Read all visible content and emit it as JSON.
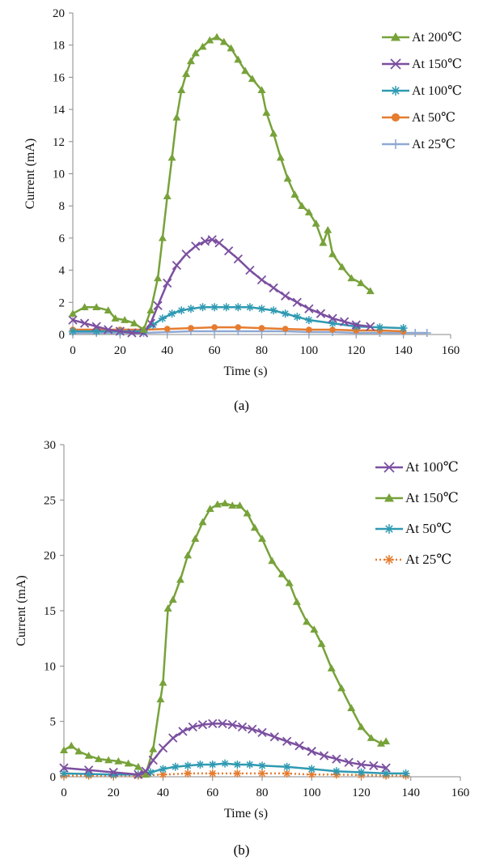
{
  "chart_data": [
    {
      "type": "line",
      "title": "",
      "caption": "(a)",
      "xlabel": "Time (s)",
      "ylabel": "Current (mA)",
      "xlim": [
        0,
        160
      ],
      "ylim": [
        0,
        20
      ],
      "xticks": [
        0,
        20,
        40,
        60,
        80,
        100,
        120,
        140,
        160
      ],
      "yticks": [
        0,
        2,
        4,
        6,
        8,
        10,
        12,
        14,
        16,
        18,
        20
      ],
      "grid": false,
      "legend_position": "top-right",
      "series": [
        {
          "name": "At 200℃",
          "color": "#77A23A",
          "marker": "triangle",
          "x": [
            0,
            5,
            10,
            15,
            18,
            22,
            26,
            30,
            33,
            36,
            38,
            40,
            42,
            44,
            46,
            48,
            50,
            52,
            55,
            58,
            61,
            64,
            67,
            70,
            73,
            76,
            80,
            82,
            85,
            88,
            91,
            94,
            97,
            100,
            103,
            106,
            108,
            110,
            114,
            118,
            122,
            126
          ],
          "y": [
            1.3,
            1.7,
            1.7,
            1.5,
            1.0,
            0.9,
            0.7,
            0.3,
            1.5,
            3.5,
            6.0,
            8.6,
            11.0,
            13.5,
            15.2,
            16.2,
            17.0,
            17.5,
            17.9,
            18.3,
            18.5,
            18.2,
            17.8,
            17.1,
            16.4,
            15.9,
            15.2,
            13.8,
            12.5,
            11.0,
            9.7,
            8.7,
            8.0,
            7.6,
            6.9,
            5.7,
            6.5,
            5.0,
            4.2,
            3.5,
            3.2,
            2.7
          ]
        },
        {
          "name": "At 150℃",
          "color": "#7B4FA0",
          "marker": "x",
          "x": [
            0,
            5,
            10,
            15,
            20,
            25,
            30,
            33,
            36,
            40,
            44,
            48,
            52,
            56,
            59,
            62,
            66,
            70,
            75,
            80,
            85,
            90,
            95,
            100,
            105,
            110,
            115,
            120,
            126
          ],
          "y": [
            0.9,
            0.7,
            0.5,
            0.3,
            0.2,
            0.1,
            0.1,
            0.7,
            1.8,
            3.2,
            4.3,
            5.0,
            5.5,
            5.8,
            5.9,
            5.7,
            5.2,
            4.7,
            4.0,
            3.4,
            2.9,
            2.4,
            2.0,
            1.6,
            1.3,
            1.0,
            0.8,
            0.6,
            0.5
          ]
        },
        {
          "name": "At 100℃",
          "color": "#2F9AB2",
          "marker": "asterisk",
          "x": [
            0,
            10,
            20,
            30,
            34,
            38,
            42,
            46,
            50,
            55,
            60,
            65,
            70,
            75,
            80,
            85,
            90,
            95,
            100,
            110,
            120,
            130,
            140
          ],
          "y": [
            0.2,
            0.2,
            0.2,
            0.2,
            0.6,
            1.0,
            1.3,
            1.5,
            1.6,
            1.7,
            1.7,
            1.7,
            1.7,
            1.7,
            1.6,
            1.5,
            1.3,
            1.1,
            0.9,
            0.7,
            0.5,
            0.45,
            0.4
          ]
        },
        {
          "name": "At 50℃",
          "color": "#E57C2F",
          "marker": "circle",
          "x": [
            0,
            10,
            20,
            30,
            40,
            50,
            60,
            70,
            80,
            90,
            100,
            110,
            120,
            130,
            140
          ],
          "y": [
            0.3,
            0.3,
            0.3,
            0.3,
            0.35,
            0.4,
            0.45,
            0.45,
            0.4,
            0.35,
            0.3,
            0.3,
            0.25,
            0.25,
            0.2
          ]
        },
        {
          "name": "At 25℃",
          "color": "#8FA9D3",
          "marker": "plus",
          "x": [
            0,
            10,
            20,
            30,
            40,
            50,
            60,
            70,
            80,
            90,
            100,
            110,
            120,
            130,
            140,
            145,
            150
          ],
          "y": [
            0.1,
            0.1,
            0.1,
            0.1,
            0.15,
            0.2,
            0.2,
            0.2,
            0.2,
            0.2,
            0.15,
            0.15,
            0.1,
            0.1,
            0.1,
            0.1,
            0.1
          ]
        }
      ]
    },
    {
      "type": "line",
      "title": "",
      "caption": "(b)",
      "xlabel": "Time (s)",
      "ylabel": "Current (mA)",
      "xlim": [
        0,
        160
      ],
      "ylim": [
        0,
        30
      ],
      "xticks": [
        0,
        20,
        40,
        60,
        80,
        100,
        120,
        140,
        160
      ],
      "yticks": [
        0,
        5,
        10,
        15,
        20,
        25,
        30
      ],
      "grid": false,
      "legend_position": "top-right",
      "series": [
        {
          "name": "At 100℃",
          "color": "#7B4FA0",
          "marker": "x",
          "x": [
            0,
            10,
            20,
            30,
            33,
            36,
            40,
            44,
            48,
            52,
            56,
            60,
            64,
            68,
            72,
            76,
            80,
            85,
            90,
            95,
            100,
            105,
            110,
            115,
            120,
            125,
            130
          ],
          "y": [
            0.8,
            0.6,
            0.4,
            0.2,
            0.5,
            1.5,
            2.6,
            3.5,
            4.1,
            4.5,
            4.7,
            4.8,
            4.8,
            4.7,
            4.5,
            4.3,
            4.0,
            3.6,
            3.2,
            2.8,
            2.3,
            1.9,
            1.6,
            1.3,
            1.1,
            1.0,
            0.8
          ]
        },
        {
          "name": "At 150℃",
          "color": "#77A23A",
          "marker": "triangle",
          "x": [
            0,
            3,
            6,
            10,
            14,
            18,
            22,
            26,
            30,
            33,
            36,
            39,
            40,
            42,
            44,
            47,
            50,
            53,
            56,
            59,
            62,
            65,
            68,
            71,
            74,
            77,
            80,
            84,
            88,
            91,
            94,
            98,
            101,
            104,
            108,
            112,
            116,
            120,
            124,
            128,
            130
          ],
          "y": [
            2.4,
            2.8,
            2.3,
            1.9,
            1.6,
            1.5,
            1.4,
            1.2,
            0.9,
            0.2,
            2.5,
            7.0,
            8.5,
            15.2,
            16.0,
            17.8,
            20.0,
            21.5,
            23.0,
            24.2,
            24.6,
            24.7,
            24.5,
            24.5,
            23.8,
            22.5,
            21.5,
            19.5,
            18.3,
            17.5,
            15.8,
            14.0,
            13.3,
            12.0,
            9.8,
            8.0,
            6.2,
            4.5,
            3.5,
            3.0,
            3.2
          ]
        },
        {
          "name": "At 50℃",
          "color": "#2F9AB2",
          "marker": "asterisk",
          "x": [
            0,
            10,
            20,
            30,
            35,
            40,
            45,
            50,
            55,
            60,
            65,
            70,
            75,
            80,
            90,
            100,
            110,
            120,
            130,
            138
          ],
          "y": [
            0.3,
            0.25,
            0.2,
            0.2,
            0.4,
            0.7,
            0.9,
            1.0,
            1.1,
            1.1,
            1.2,
            1.1,
            1.1,
            1.0,
            0.9,
            0.7,
            0.5,
            0.4,
            0.3,
            0.3
          ]
        },
        {
          "name": "At 25℃",
          "color": "#E57C2F",
          "marker": "asterisk-dotted",
          "x": [
            0,
            10,
            20,
            30,
            40,
            50,
            60,
            70,
            80,
            90,
            100,
            110,
            120,
            130,
            138
          ],
          "y": [
            0.1,
            0.1,
            0.1,
            0.1,
            0.2,
            0.3,
            0.3,
            0.3,
            0.3,
            0.3,
            0.2,
            0.2,
            0.15,
            0.1,
            0.1
          ]
        }
      ]
    }
  ]
}
